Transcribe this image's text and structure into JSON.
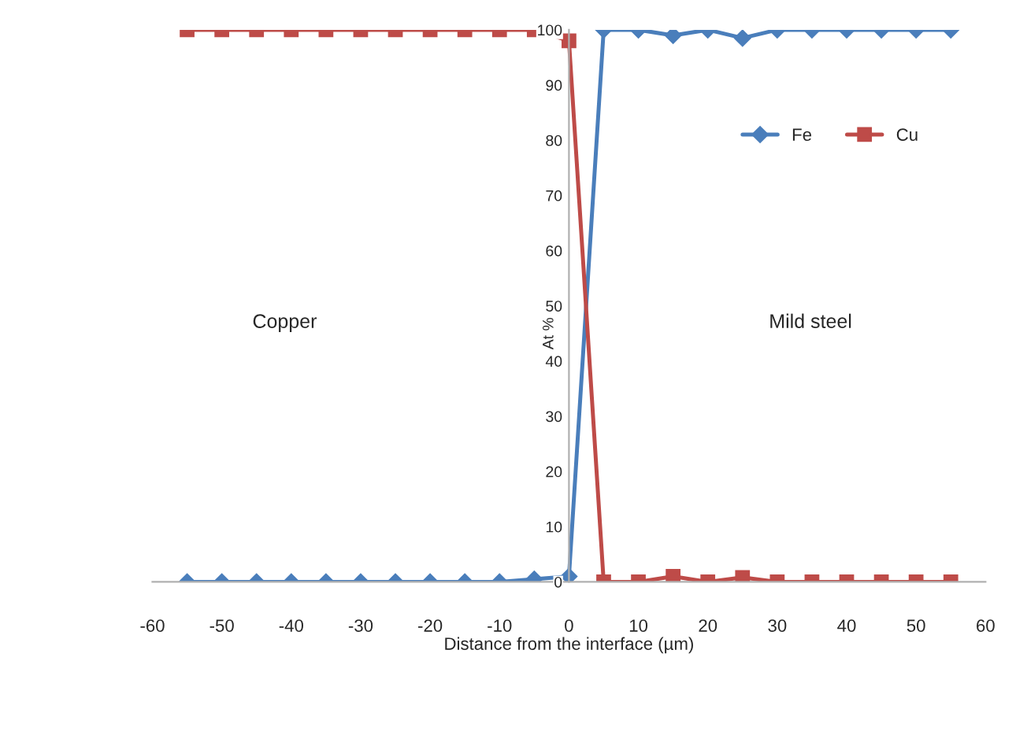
{
  "chart_data": {
    "type": "line",
    "xlabel": "Distance from the interface (µm)",
    "ylabel": "At %",
    "x": [
      -55,
      -50,
      -45,
      -40,
      -35,
      -30,
      -25,
      -20,
      -15,
      -10,
      -5,
      0,
      5,
      10,
      15,
      20,
      25,
      30,
      35,
      40,
      45,
      50,
      55
    ],
    "series": [
      {
        "name": "Fe",
        "color": "#4a7ebb",
        "marker": "diamond",
        "values": [
          0,
          0,
          0,
          0,
          0,
          0,
          0,
          0,
          0,
          0,
          0.5,
          1,
          100,
          100,
          99,
          100,
          98.5,
          100,
          100,
          100,
          100,
          100,
          100
        ]
      },
      {
        "name": "Cu",
        "color": "#be4b48",
        "marker": "square",
        "values": [
          100,
          100,
          100,
          100,
          100,
          100,
          100,
          100,
          100,
          100,
          100,
          98,
          0,
          0,
          1,
          0,
          0.8,
          0,
          0,
          0,
          0,
          0,
          0
        ]
      }
    ],
    "xlim": [
      -60,
      60
    ],
    "xticks": [
      -60,
      -50,
      -40,
      -30,
      -20,
      -10,
      0,
      10,
      20,
      30,
      40,
      50,
      60
    ],
    "ylim": [
      0,
      100
    ],
    "yticks": [
      0,
      10,
      20,
      30,
      40,
      50,
      60,
      70,
      80,
      90,
      100
    ],
    "annotations": [
      "Copper",
      "Mild steel"
    ],
    "legend": "top right",
    "grid": false
  }
}
